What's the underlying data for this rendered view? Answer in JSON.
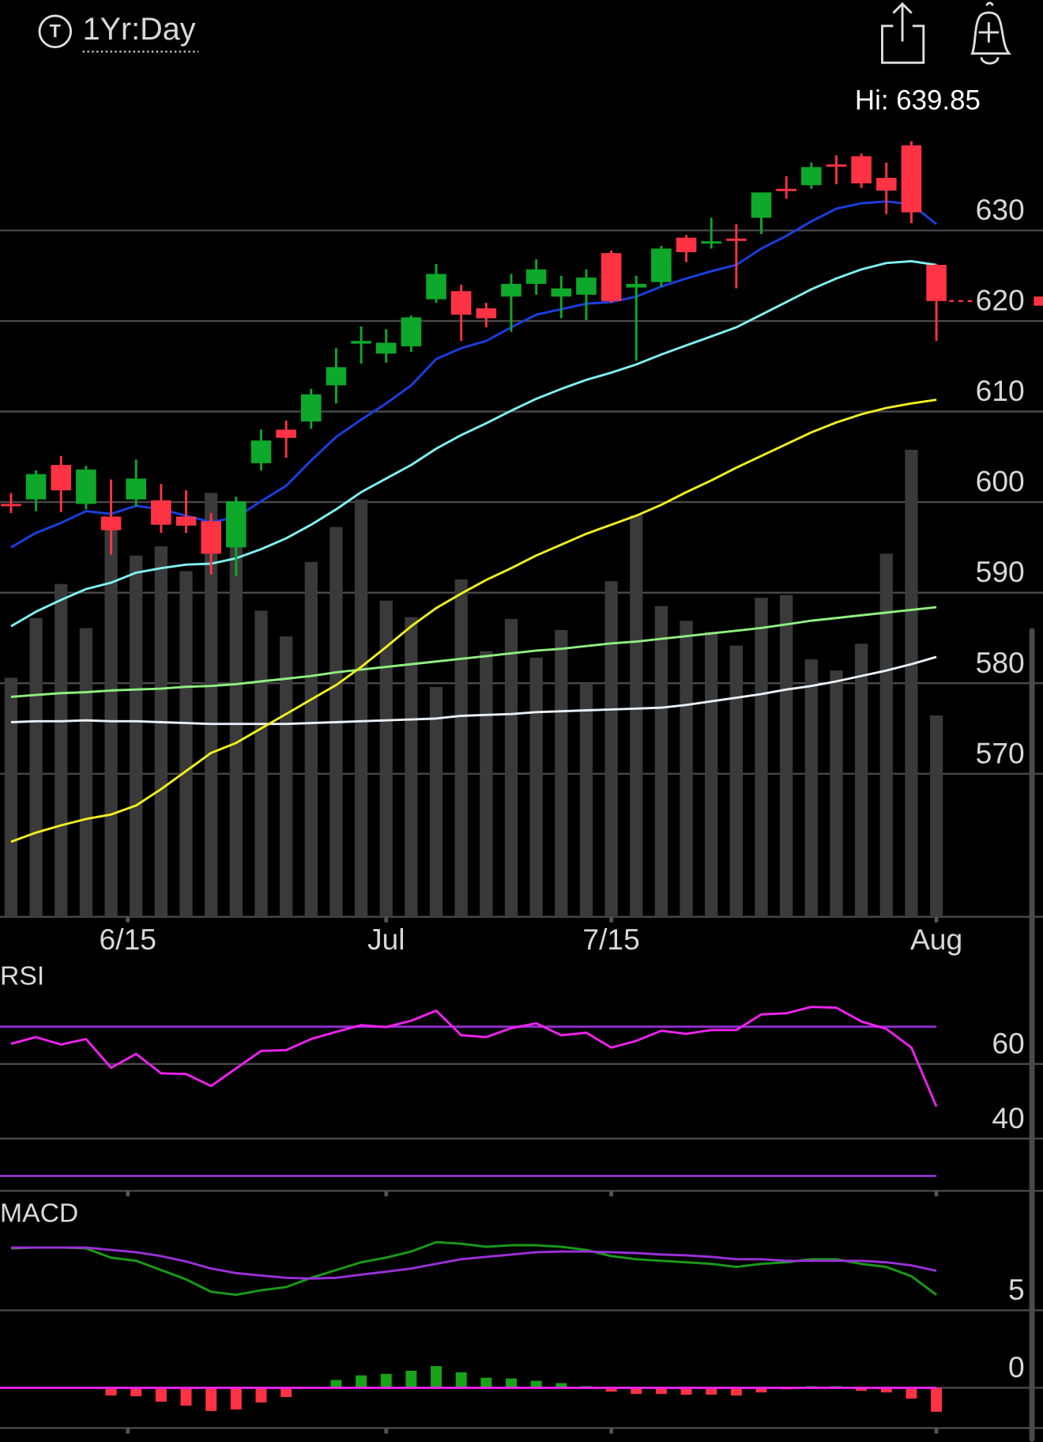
{
  "header": {
    "range": "1Yr:Day"
  },
  "chart_data": [
    {
      "type": "candlestick",
      "hi_label": "Hi: 639.85",
      "open": [
        599.8,
        600.3,
        604.1,
        599.8,
        598.4,
        600.3,
        600.2,
        598.4,
        597.9,
        595.0,
        604.3,
        608.0,
        608.9,
        612.9,
        617.5,
        616.4,
        617.2,
        622.4,
        623.3,
        621.4,
        622.7,
        624.1,
        622.7,
        622.9,
        627.5,
        623.7,
        624.3,
        629.2,
        628.6,
        629.1,
        631.4,
        634.6,
        635.0,
        637.3,
        638.2,
        635.8,
        639.4,
        626.2
      ],
      "high": [
        601.0,
        603.5,
        605.1,
        604.0,
        602.5,
        604.7,
        602.0,
        601.3,
        598.8,
        600.6,
        608.0,
        609.0,
        612.5,
        617.0,
        619.4,
        619.1,
        620.6,
        626.3,
        624.0,
        622.0,
        625.2,
        626.8,
        625.0,
        625.7,
        627.8,
        625.0,
        628.3,
        629.5,
        631.4,
        630.7,
        634.2,
        636.0,
        637.5,
        638.3,
        638.5,
        637.5,
        639.85,
        626.3
      ],
      "low": [
        598.8,
        599.0,
        598.9,
        599.2,
        594.2,
        599.5,
        596.6,
        596.6,
        592.0,
        591.8,
        603.5,
        604.9,
        608.1,
        610.9,
        615.3,
        615.4,
        616.6,
        622.0,
        617.8,
        619.3,
        618.8,
        622.9,
        620.3,
        620.1,
        622.0,
        615.6,
        623.8,
        626.5,
        628.0,
        623.6,
        629.6,
        633.5,
        634.6,
        635.1,
        634.7,
        631.8,
        630.8,
        617.8
      ],
      "close": [
        599.7,
        603.1,
        601.3,
        603.6,
        596.9,
        602.6,
        597.5,
        597.4,
        594.3,
        600.1,
        606.8,
        607.1,
        611.9,
        614.9,
        617.8,
        617.6,
        620.4,
        625.2,
        620.7,
        620.3,
        624.1,
        625.7,
        623.6,
        624.8,
        622.2,
        624.1,
        628.0,
        627.6,
        628.8,
        629.0,
        634.2,
        634.5,
        637.0,
        637.1,
        635.2,
        634.4,
        632.0,
        622.2
      ],
      "up_color": "#0ea82a",
      "down_color": "#ff3344",
      "ylim": [
        554.2,
        646.8
      ],
      "yticks": [
        570,
        580,
        590,
        600,
        610,
        620,
        630
      ],
      "grid": true,
      "xticks": [
        {
          "value": 4.67,
          "label": "6/15"
        },
        {
          "value": 15,
          "label": "Jul"
        },
        {
          "value": 24,
          "label": "7/15"
        },
        {
          "value": 37,
          "label": "Aug"
        }
      ],
      "volume": {
        "color": "#3a3a3a",
        "values": [
          260,
          325,
          362,
          314,
          422,
          393,
          403,
          376,
          461,
          452,
          333,
          305,
          386,
          424,
          454,
          344,
          326,
          250,
          367,
          289,
          324,
          282,
          312,
          254,
          365,
          437,
          338,
          322,
          310,
          295,
          347,
          350,
          280,
          268,
          297,
          395,
          508,
          219
        ]
      },
      "vlim": [
        0,
        912
      ],
      "overlays": [
        {
          "color": "#e8f0f8",
          "values": [
            575.7,
            575.8,
            575.8,
            575.9,
            575.8,
            575.8,
            575.7,
            575.6,
            575.5,
            575.5,
            575.5,
            575.5,
            575.6,
            575.7,
            575.8,
            575.9,
            576.0,
            576.1,
            576.4,
            576.5,
            576.6,
            576.8,
            576.9,
            577.0,
            577.1,
            577.2,
            577.3,
            577.6,
            578.0,
            578.4,
            578.8,
            579.3,
            579.7,
            580.2,
            580.8,
            581.4,
            582.1,
            582.9
          ]
        },
        {
          "color": "#90ee80",
          "values": [
            578.5,
            578.7,
            578.9,
            579.0,
            579.2,
            579.3,
            579.4,
            579.6,
            579.7,
            579.9,
            580.2,
            580.5,
            580.8,
            581.2,
            581.5,
            581.8,
            582.1,
            582.4,
            582.7,
            583.0,
            583.3,
            583.6,
            583.8,
            584.1,
            584.4,
            584.6,
            584.9,
            585.2,
            585.5,
            585.8,
            586.1,
            586.5,
            586.9,
            587.2,
            587.5,
            587.8,
            588.1,
            588.4
          ]
        },
        {
          "color": "#f0f020",
          "values": [
            562.5,
            563.5,
            564.3,
            565.0,
            565.5,
            566.5,
            568.3,
            570.3,
            572.3,
            573.4,
            575.0,
            576.6,
            578.2,
            579.8,
            581.8,
            584.0,
            586.3,
            588.3,
            589.9,
            591.4,
            592.7,
            594.1,
            595.3,
            596.5,
            597.5,
            598.5,
            599.7,
            601.1,
            602.4,
            603.8,
            605.1,
            606.4,
            607.7,
            608.8,
            609.7,
            610.4,
            610.9,
            611.3
          ]
        },
        {
          "color": "#80f0f0",
          "values": [
            586.3,
            587.9,
            589.2,
            590.4,
            591.1,
            592.2,
            592.7,
            593.1,
            593.2,
            593.8,
            594.8,
            596.0,
            597.5,
            599.2,
            601.1,
            602.6,
            604.1,
            605.9,
            607.4,
            608.7,
            610.1,
            611.4,
            612.5,
            613.5,
            614.3,
            615.2,
            616.3,
            617.3,
            618.3,
            619.3,
            620.7,
            622.1,
            623.5,
            624.7,
            625.7,
            626.4,
            626.6,
            626.2
          ]
        },
        {
          "color": "#1a3fe0",
          "values": [
            595.0,
            596.6,
            597.7,
            599.0,
            598.7,
            599.6,
            599.2,
            598.5,
            597.8,
            598.3,
            600.1,
            601.8,
            604.6,
            607.2,
            609.1,
            610.9,
            612.9,
            615.8,
            617.0,
            617.8,
            619.3,
            620.7,
            621.3,
            621.9,
            622.1,
            622.7,
            623.8,
            624.7,
            625.5,
            626.2,
            628.0,
            629.4,
            631.0,
            632.4,
            633.0,
            633.2,
            632.9,
            630.7
          ]
        }
      ]
    },
    {
      "type": "line",
      "title": "RSI",
      "color": "#ee22ee",
      "values": [
        65.4,
        67.2,
        65.2,
        66.7,
        59.0,
        62.7,
        57.5,
        57.3,
        54.1,
        58.8,
        63.5,
        63.7,
        66.7,
        68.6,
        70.4,
        69.9,
        71.6,
        74.3,
        67.7,
        67.2,
        69.6,
        70.9,
        67.7,
        68.4,
        64.4,
        66.2,
        68.9,
        68.1,
        69.1,
        69.1,
        73.3,
        73.6,
        75.3,
        75.1,
        71.4,
        69.4,
        64.4,
        48.6
      ],
      "levels": [
        70,
        30
      ],
      "level_color": "#9030d0",
      "ylim": [
        26,
        78
      ],
      "yticks": [
        60,
        40
      ],
      "grid": true
    },
    {
      "type": "macd",
      "title": "MACD",
      "series": [
        {
          "color": "#1a9a1a",
          "values": [
            9.0,
            9.05,
            9.05,
            9.0,
            8.4,
            8.2,
            7.6,
            7.0,
            6.2,
            6.0,
            6.3,
            6.5,
            7.1,
            7.6,
            8.1,
            8.4,
            8.8,
            9.4,
            9.3,
            9.1,
            9.2,
            9.2,
            9.1,
            8.9,
            8.5,
            8.3,
            8.2,
            8.1,
            8.0,
            7.8,
            8.0,
            8.1,
            8.3,
            8.3,
            8.0,
            7.8,
            7.2,
            6.0
          ]
        },
        {
          "color": "#9b30d9",
          "values": [
            9.05,
            9.05,
            9.05,
            9.05,
            8.9,
            8.75,
            8.5,
            8.15,
            7.7,
            7.4,
            7.25,
            7.1,
            7.05,
            7.1,
            7.3,
            7.5,
            7.7,
            8.0,
            8.3,
            8.45,
            8.6,
            8.75,
            8.8,
            8.8,
            8.75,
            8.7,
            8.6,
            8.55,
            8.45,
            8.3,
            8.3,
            8.2,
            8.2,
            8.2,
            8.2,
            8.1,
            7.9,
            7.55
          ]
        }
      ],
      "histogram": [
        -0.05,
        0,
        0,
        -0.05,
        -0.5,
        -0.55,
        -0.9,
        -1.15,
        -1.5,
        -1.4,
        -0.95,
        -0.6,
        0.05,
        0.5,
        0.8,
        0.9,
        1.1,
        1.4,
        1.0,
        0.65,
        0.6,
        0.45,
        0.3,
        0.1,
        -0.25,
        -0.4,
        -0.4,
        -0.45,
        -0.45,
        -0.5,
        -0.3,
        -0.1,
        0.1,
        0.1,
        -0.2,
        -0.3,
        -0.7,
        -1.55
      ],
      "pos_color": "#19a319",
      "neg_color": "#ff3344",
      "zero_color": "#ee22ee",
      "ylim": [
        -2.6,
        10.4
      ],
      "yticks": [
        5,
        0
      ],
      "grid": true
    }
  ]
}
